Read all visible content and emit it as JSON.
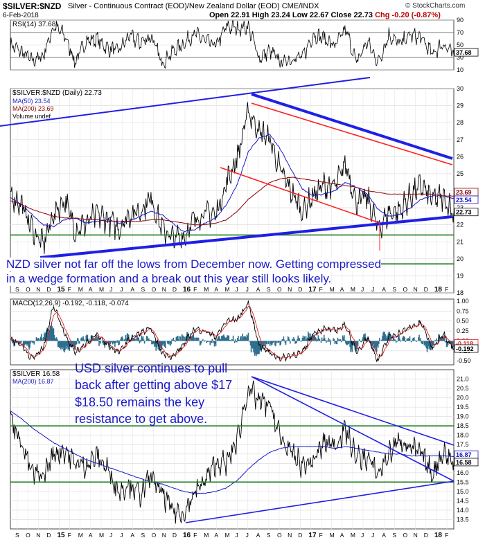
{
  "header": {
    "symbol": "$SILVER:$NZD",
    "description": "Silver - Continuous Contract (EOD)/New Zealand Dollar (EOD) CME/INDX",
    "date": "6-Feb-2018",
    "open": "Open 22.91",
    "high": "High 23.24",
    "low": "Low 22.67",
    "close": "Close 22.73",
    "chg": "Chg -0.20 (-0.87%)",
    "watermark": "© StockCharts.com"
  },
  "annotations": {
    "nzd_note_1": "NZD silver not far off the lows from December now. Getting compressed",
    "nzd_note_2": "in a wedge formation and a break out this year still looks likely.",
    "usd_note_1": "USD silver continues to pull",
    "usd_note_2": "back after getting above $17",
    "usd_note_3": "$18.50 remains the key",
    "usd_note_4": "resistance to get above."
  },
  "colors": {
    "price": "#000000",
    "ma50": "#1a1ac8",
    "ma200": "#8b0000",
    "trend_blue": "#1f1fe6",
    "trend_red": "#ff2020",
    "support_green": "#1a7a1a",
    "macd_hist": "#2e6e8e",
    "macd_signal": "#e02020"
  },
  "chart_data": [
    {
      "id": "rsi",
      "type": "line",
      "title": "RSI(14) 37.68",
      "ylim": [
        10,
        90
      ],
      "ticks": [
        "90",
        "70",
        "50",
        "30",
        "10"
      ],
      "last_value": "37.68",
      "reference_levels": [
        30,
        70
      ]
    },
    {
      "id": "nzd",
      "type": "line",
      "title": "$SILVER:$NZD (Daily) 22.73",
      "legend": [
        "MA(50) 23.54",
        "MA(200) 23.69",
        "Volume undef"
      ],
      "ylim": [
        18,
        30
      ],
      "ticks": [
        "30",
        "29",
        "28",
        "27",
        "26",
        "25",
        "24",
        "23",
        "22",
        "21",
        "20",
        "19",
        "18"
      ],
      "last_labels": [
        "23.69",
        "23.54",
        "22.73"
      ],
      "x_labels": [
        "S",
        "O",
        "N",
        "D",
        "15",
        "F",
        "M",
        "A",
        "M",
        "J",
        "J",
        "A",
        "S",
        "O",
        "N",
        "D",
        "16",
        "F",
        "M",
        "A",
        "M",
        "J",
        "J",
        "A",
        "S",
        "O",
        "N",
        "D",
        "17",
        "F",
        "M",
        "A",
        "M",
        "J",
        "J",
        "A",
        "S",
        "O",
        "N",
        "D",
        "18",
        "F"
      ],
      "series": [
        {
          "name": "$SILVER:$NZD",
          "x": [
            "2014-09",
            "2014-10",
            "2014-11",
            "2014-12",
            "2015-01",
            "2015-02",
            "2015-03",
            "2015-04",
            "2015-05",
            "2015-06",
            "2015-07",
            "2015-08",
            "2015-09",
            "2015-10",
            "2015-11",
            "2015-12",
            "2016-01",
            "2016-02",
            "2016-03",
            "2016-04",
            "2016-05",
            "2016-06",
            "2016-07",
            "2016-08",
            "2016-09",
            "2016-10",
            "2016-11",
            "2016-12",
            "2017-01",
            "2017-02",
            "2017-03",
            "2017-04",
            "2017-05",
            "2017-06",
            "2017-07",
            "2017-08",
            "2017-09",
            "2017-10",
            "2017-11",
            "2017-12",
            "2018-01",
            "2018-02"
          ],
          "values": [
            23.8,
            23.2,
            21.8,
            20.8,
            22.6,
            23.5,
            21.7,
            22.1,
            22.6,
            22.3,
            21.8,
            22.6,
            22.8,
            23.6,
            21.8,
            21.2,
            21.3,
            22.3,
            22.7,
            22.6,
            24.5,
            26.0,
            28.7,
            27.5,
            27.0,
            25.1,
            23.9,
            22.8,
            23.7,
            24.3,
            24.2,
            25.6,
            23.3,
            23.6,
            21.8,
            22.7,
            22.8,
            23.7,
            24.3,
            23.5,
            23.6,
            22.73
          ]
        },
        {
          "name": "MA(50) 23.54",
          "values": [
            23.6,
            23.2,
            22.6,
            22.0,
            21.9,
            22.3,
            22.4,
            22.1,
            22.2,
            22.3,
            22.1,
            22.2,
            22.5,
            22.8,
            22.6,
            22.1,
            21.6,
            21.7,
            22.1,
            22.4,
            23.2,
            24.4,
            26.3,
            27.1,
            27.3,
            26.4,
            25.2,
            24.1,
            23.7,
            23.8,
            24.0,
            24.5,
            24.2,
            23.8,
            22.9,
            22.5,
            22.6,
            23.0,
            23.5,
            23.7,
            23.7,
            23.54
          ]
        },
        {
          "name": "MA(200) 23.69",
          "values": [
            23.4,
            23.2,
            22.9,
            22.7,
            22.5,
            22.4,
            22.4,
            22.3,
            22.3,
            22.2,
            22.2,
            22.2,
            22.2,
            22.3,
            22.3,
            22.2,
            22.1,
            22.0,
            22.0,
            22.1,
            22.3,
            22.8,
            23.5,
            24.0,
            24.5,
            24.7,
            24.8,
            24.7,
            24.6,
            24.5,
            24.4,
            24.3,
            24.2,
            24.0,
            23.9,
            23.8,
            23.8,
            23.8,
            23.8,
            23.8,
            23.7,
            23.69
          ]
        }
      ],
      "support_levels": [
        21.4,
        19.7
      ]
    },
    {
      "id": "macd",
      "type": "line",
      "title": "MACD(12,26,9) -0.192, -0.118, -0.074",
      "ylim": [
        -0.6,
        1.05
      ],
      "ticks": [
        "1.00",
        "0.75",
        "0.50",
        "0.25",
        "0.00",
        "-0.25",
        "-0.50"
      ],
      "last_labels": [
        "-0.118",
        "-0.192"
      ],
      "values": [
        0.05,
        -0.1,
        -0.45,
        -0.2,
        0.9,
        0.2,
        -0.3,
        -0.05,
        0.15,
        -0.1,
        -0.3,
        0.05,
        0.2,
        0.3,
        -0.3,
        -0.4,
        -0.1,
        0.3,
        0.25,
        0.1,
        0.5,
        0.55,
        0.95,
        -0.1,
        -0.3,
        -0.45,
        -0.35,
        -0.3,
        0.2,
        0.3,
        0.25,
        0.4,
        -0.3,
        0.1,
        -0.5,
        0.1,
        0.2,
        0.35,
        0.45,
        -0.2,
        0.2,
        -0.192
      ]
    },
    {
      "id": "usd",
      "type": "line",
      "title": "$SILVER 16.58",
      "legend": [
        "MA(200) 16.87"
      ],
      "ylim": [
        13.0,
        21.5
      ],
      "ticks": [
        "21.0",
        "20.5",
        "20.0",
        "19.5",
        "19.0",
        "18.5",
        "18.0",
        "17.5",
        "17.0",
        "16.5",
        "16.0",
        "15.5",
        "15.0",
        "14.5",
        "14.0",
        "13.5"
      ],
      "last_labels": [
        "16.87",
        "16.58"
      ],
      "x_labels": [
        "S",
        "O",
        "N",
        "D",
        "15",
        "F",
        "M",
        "A",
        "M",
        "J",
        "J",
        "A",
        "S",
        "O",
        "N",
        "D",
        "16",
        "F",
        "M",
        "A",
        "M",
        "J",
        "J",
        "A",
        "S",
        "O",
        "N",
        "D",
        "17",
        "F",
        "M",
        "A",
        "M",
        "J",
        "J",
        "A",
        "S",
        "O",
        "N",
        "D",
        "18",
        "F"
      ],
      "series": [
        {
          "name": "$SILVER",
          "values": [
            19.0,
            17.6,
            16.0,
            15.8,
            17.0,
            17.2,
            16.5,
            16.4,
            16.9,
            16.2,
            15.0,
            15.4,
            14.8,
            15.8,
            14.9,
            14.0,
            13.8,
            14.9,
            15.6,
            16.5,
            16.5,
            17.8,
            20.5,
            19.8,
            19.6,
            17.8,
            17.0,
            16.4,
            16.6,
            17.6,
            17.5,
            18.3,
            16.8,
            16.8,
            15.9,
            17.0,
            17.8,
            17.3,
            17.0,
            15.9,
            17.1,
            16.58
          ]
        },
        {
          "name": "MA(200) 16.87",
          "values": [
            19.3,
            18.9,
            18.4,
            18.0,
            17.6,
            17.3,
            17.0,
            16.7,
            16.5,
            16.3,
            16.1,
            15.9,
            15.7,
            15.5,
            15.4,
            15.2,
            15.0,
            14.9,
            14.9,
            15.0,
            15.2,
            15.6,
            16.2,
            16.7,
            17.1,
            17.3,
            17.4,
            17.4,
            17.4,
            17.4,
            17.3,
            17.4,
            17.3,
            17.2,
            17.1,
            17.0,
            17.0,
            16.9,
            16.9,
            16.9,
            16.9,
            16.87
          ]
        }
      ],
      "support_levels": [
        18.5,
        15.5
      ]
    }
  ]
}
